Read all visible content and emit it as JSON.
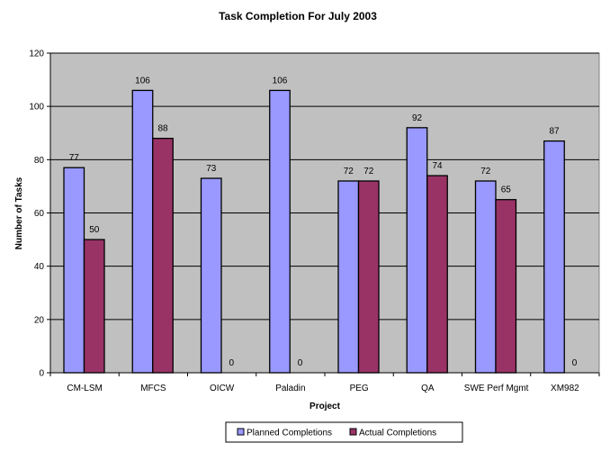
{
  "chart_data": {
    "type": "bar",
    "title": "Task Completion For July 2003",
    "xlabel": "Project",
    "ylabel": "Number of Tasks",
    "ylim": [
      0,
      120
    ],
    "yticks": [
      0,
      20,
      40,
      60,
      80,
      100,
      120
    ],
    "grid": true,
    "legend_position": "bottom",
    "categories": [
      "CM-LSM",
      "MFCS",
      "OICW",
      "Paladin",
      "PEG",
      "QA",
      "SWE Perf Mgmt",
      "XM982"
    ],
    "series": [
      {
        "name": "Planned Completions",
        "color": "#9999FF",
        "values": [
          77,
          106,
          73,
          106,
          72,
          92,
          72,
          87
        ]
      },
      {
        "name": "Actual Completions",
        "color": "#993366",
        "values": [
          50,
          88,
          0,
          0,
          72,
          74,
          65,
          0
        ]
      }
    ],
    "plot_background": "#C0C0C0"
  }
}
